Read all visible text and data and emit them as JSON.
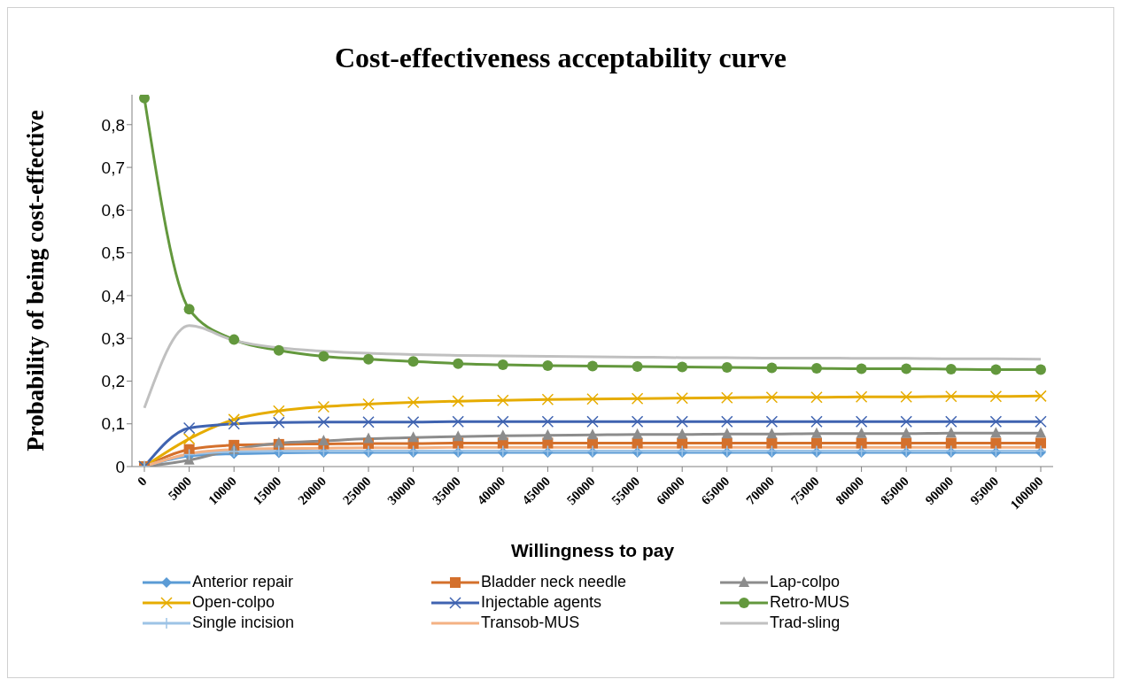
{
  "chart_data": {
    "type": "line",
    "title": "Cost-effectiveness acceptability curve",
    "xlabel": "Willingness to pay",
    "ylabel": "Probability of being cost-effective",
    "categories": [
      "0",
      "5000",
      "10000",
      "15000",
      "20000",
      "25000",
      "30000",
      "35000",
      "40000",
      "45000",
      "50000",
      "55000",
      "60000",
      "65000",
      "70000",
      "75000",
      "80000",
      "85000",
      "90000",
      "95000",
      "100000"
    ],
    "ylim": [
      0,
      0.87
    ],
    "yticks": [
      {
        "value": 0,
        "label": "0"
      },
      {
        "value": 0.1,
        "label": "0,1"
      },
      {
        "value": 0.2,
        "label": "0,2"
      },
      {
        "value": 0.3,
        "label": "0,3"
      },
      {
        "value": 0.4,
        "label": "0,4"
      },
      {
        "value": 0.5,
        "label": "0,5"
      },
      {
        "value": 0.6,
        "label": "0,6"
      },
      {
        "value": 0.7,
        "label": "0,7"
      },
      {
        "value": 0.8,
        "label": "0,8"
      }
    ],
    "grid": false,
    "legend": "bottom",
    "line_style": "solid",
    "series": [
      {
        "name": "Anterior repair",
        "color": "#5b9bd5",
        "marker": "diamond",
        "values": [
          0,
          0.025,
          0.03,
          0.032,
          0.033,
          0.033,
          0.033,
          0.033,
          0.033,
          0.033,
          0.033,
          0.033,
          0.033,
          0.033,
          0.033,
          0.033,
          0.033,
          0.033,
          0.033,
          0.033,
          0.033
        ]
      },
      {
        "name": "Bladder neck needle",
        "color": "#d4702c",
        "marker": "square",
        "values": [
          0,
          0.04,
          0.05,
          0.052,
          0.053,
          0.054,
          0.054,
          0.055,
          0.055,
          0.055,
          0.055,
          0.055,
          0.055,
          0.055,
          0.055,
          0.055,
          0.055,
          0.055,
          0.055,
          0.055,
          0.055
        ]
      },
      {
        "name": "Lap-colpo",
        "color": "#8c8c8c",
        "marker": "triangle",
        "values": [
          0,
          0.015,
          0.04,
          0.055,
          0.06,
          0.065,
          0.068,
          0.07,
          0.072,
          0.073,
          0.074,
          0.075,
          0.075,
          0.076,
          0.076,
          0.077,
          0.077,
          0.077,
          0.078,
          0.078,
          0.078
        ]
      },
      {
        "name": "Open-colpo",
        "color": "#e6ac00",
        "marker": "cross",
        "values": [
          0,
          0.065,
          0.11,
          0.13,
          0.14,
          0.146,
          0.15,
          0.153,
          0.155,
          0.157,
          0.158,
          0.159,
          0.16,
          0.161,
          0.162,
          0.162,
          0.163,
          0.163,
          0.164,
          0.164,
          0.165
        ]
      },
      {
        "name": "Injectable agents",
        "color": "#3f63b0",
        "marker": "cross",
        "values": [
          0,
          0.09,
          0.1,
          0.103,
          0.104,
          0.104,
          0.104,
          0.105,
          0.105,
          0.105,
          0.105,
          0.105,
          0.105,
          0.105,
          0.105,
          0.105,
          0.105,
          0.105,
          0.105,
          0.105,
          0.105
        ]
      },
      {
        "name": "Retro-MUS",
        "color": "#63983d",
        "marker": "circle",
        "values": [
          0.862,
          0.368,
          0.297,
          0.272,
          0.258,
          0.251,
          0.246,
          0.241,
          0.238,
          0.236,
          0.235,
          0.234,
          0.233,
          0.232,
          0.231,
          0.23,
          0.229,
          0.229,
          0.228,
          0.227,
          0.227
        ]
      },
      {
        "name": "Single incision",
        "color": "#9dc3e6",
        "marker": "plus",
        "values": [
          0,
          0.028,
          0.035,
          0.036,
          0.036,
          0.036,
          0.036,
          0.036,
          0.036,
          0.036,
          0.036,
          0.036,
          0.036,
          0.036,
          0.036,
          0.036,
          0.036,
          0.036,
          0.036,
          0.036,
          0.036
        ]
      },
      {
        "name": "Transob-MUS",
        "color": "#f4b183",
        "marker": "none",
        "values": [
          0,
          0.03,
          0.04,
          0.042,
          0.043,
          0.044,
          0.044,
          0.045,
          0.045,
          0.045,
          0.045,
          0.045,
          0.045,
          0.045,
          0.045,
          0.045,
          0.045,
          0.045,
          0.045,
          0.045,
          0.045
        ]
      },
      {
        "name": "Trad-sling",
        "color": "#c0c0c0",
        "marker": "none",
        "values": [
          0.137,
          0.33,
          0.295,
          0.278,
          0.27,
          0.265,
          0.262,
          0.26,
          0.259,
          0.258,
          0.257,
          0.256,
          0.255,
          0.255,
          0.254,
          0.254,
          0.253,
          0.253,
          0.252,
          0.252,
          0.251
        ]
      }
    ]
  }
}
